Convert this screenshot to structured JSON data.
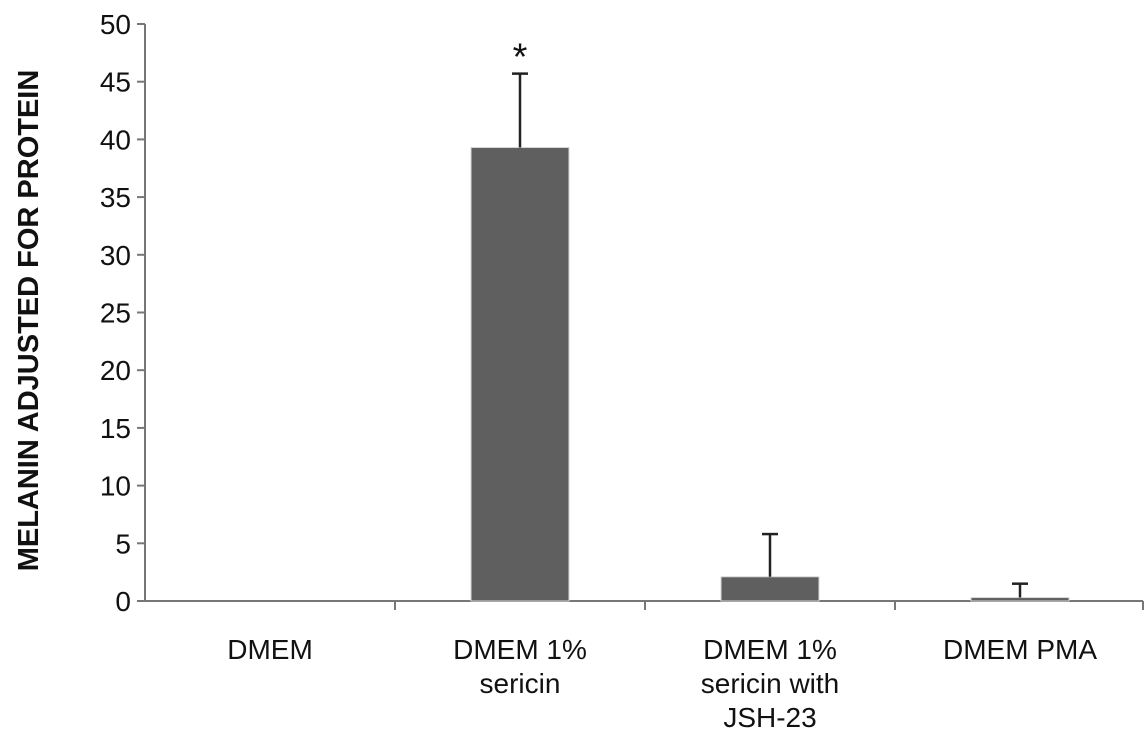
{
  "chart_data": {
    "type": "bar",
    "ylabel": "MELANIN ADJUSTED FOR PROTEIN",
    "xlabel": "",
    "ylim": [
      0,
      50
    ],
    "yticks": [
      0,
      5,
      10,
      15,
      20,
      25,
      30,
      35,
      40,
      45,
      50
    ],
    "categories": [
      [
        "DMEM"
      ],
      [
        "DMEM 1%",
        "sericin"
      ],
      [
        "DMEM 1%",
        "sericin with",
        "JSH-23"
      ],
      [
        "DMEM PMA"
      ]
    ],
    "values": [
      0,
      39.3,
      2.1,
      0.3
    ],
    "errors": [
      0,
      6.4,
      3.7,
      1.2
    ],
    "annotations": [
      "",
      "*",
      "",
      ""
    ],
    "bar_color": "#5f5f5f",
    "grid": false
  }
}
